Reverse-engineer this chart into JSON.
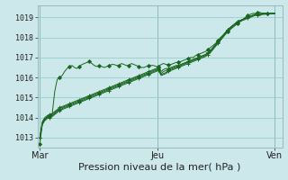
{
  "bg_color": "#cce8eb",
  "grid_color": "#99cccc",
  "line_color": "#1a6620",
  "marker_color": "#1a6620",
  "xlabel": "Pression niveau de la mer( hPa )",
  "xlabel_fontsize": 8,
  "yticks": [
    1013,
    1014,
    1015,
    1016,
    1017,
    1018,
    1019
  ],
  "ylim": [
    1012.5,
    1019.6
  ],
  "xtick_labels": [
    "Mar",
    "Jeu",
    "Ven"
  ],
  "xtick_positions": [
    0,
    48,
    96
  ],
  "xlim": [
    -1,
    99
  ],
  "vlines": [
    0,
    48,
    96
  ],
  "series": [
    [
      1012.7,
      1013.7,
      1013.9,
      1014.0,
      1014.1,
      1014.2,
      1015.3,
      1015.9,
      1016.0,
      1016.1,
      1016.3,
      1016.45,
      1016.55,
      1016.6,
      1016.5,
      1016.45,
      1016.55,
      1016.65,
      1016.7,
      1016.75,
      1016.8,
      1016.7,
      1016.6,
      1016.55,
      1016.6,
      1016.55,
      1016.5,
      1016.55,
      1016.6,
      1016.65,
      1016.65,
      1016.6,
      1016.6,
      1016.7,
      1016.65,
      1016.6,
      1016.6,
      1016.7,
      1016.65,
      1016.6,
      1016.55,
      1016.5,
      1016.5,
      1016.55,
      1016.6,
      1016.6,
      1016.6,
      1016.55,
      1016.55,
      1016.65,
      1016.7,
      1016.65,
      1016.65,
      1016.65,
      1016.7,
      1016.75,
      1016.75,
      1016.8,
      1016.85,
      1016.9,
      1016.95,
      1017.0,
      1017.0,
      1017.1,
      1017.15,
      1017.2,
      1017.25,
      1017.3,
      1017.4,
      1017.5,
      1017.6,
      1017.7,
      1017.85,
      1018.0,
      1018.1,
      1018.2,
      1018.3,
      1018.4,
      1018.5,
      1018.6,
      1018.7,
      1018.8,
      1018.9,
      1019.0,
      1019.1,
      1019.15,
      1019.2,
      1019.2,
      1019.25,
      1019.25,
      1019.2,
      1019.2,
      1019.2,
      1019.2,
      1019.2,
      1019.2
    ],
    [
      1013.0,
      1013.8,
      1014.0,
      1014.1,
      1014.15,
      1014.2,
      1014.3,
      1014.4,
      1014.5,
      1014.55,
      1014.6,
      1014.65,
      1014.7,
      1014.75,
      1014.8,
      1014.85,
      1014.9,
      1014.95,
      1015.0,
      1015.05,
      1015.1,
      1015.15,
      1015.2,
      1015.25,
      1015.3,
      1015.35,
      1015.4,
      1015.45,
      1015.5,
      1015.55,
      1015.6,
      1015.65,
      1015.7,
      1015.75,
      1015.8,
      1015.85,
      1015.9,
      1015.95,
      1016.0,
      1016.05,
      1016.1,
      1016.15,
      1016.2,
      1016.25,
      1016.3,
      1016.35,
      1016.4,
      1016.45,
      1016.5,
      1016.3,
      1016.4,
      1016.45,
      1016.45,
      1016.5,
      1016.55,
      1016.6,
      1016.6,
      1016.65,
      1016.7,
      1016.75,
      1016.8,
      1016.85,
      1016.9,
      1016.95,
      1017.0,
      1017.05,
      1017.1,
      1017.15,
      1017.25,
      1017.35,
      1017.5,
      1017.65,
      1017.8,
      1017.95,
      1018.1,
      1018.25,
      1018.4,
      1018.5,
      1018.6,
      1018.7,
      1018.8,
      1018.85,
      1018.9,
      1018.95,
      1019.0,
      1019.05,
      1019.1,
      1019.15,
      1019.15,
      1019.15,
      1019.2,
      1019.2,
      1019.2,
      1019.2,
      1019.2,
      1019.2
    ],
    [
      1013.0,
      1013.75,
      1013.95,
      1014.05,
      1014.1,
      1014.15,
      1014.25,
      1014.35,
      1014.45,
      1014.5,
      1014.55,
      1014.6,
      1014.65,
      1014.7,
      1014.75,
      1014.8,
      1014.85,
      1014.9,
      1014.95,
      1015.0,
      1015.05,
      1015.1,
      1015.15,
      1015.2,
      1015.25,
      1015.3,
      1015.35,
      1015.4,
      1015.45,
      1015.5,
      1015.55,
      1015.6,
      1015.65,
      1015.7,
      1015.75,
      1015.8,
      1015.85,
      1015.9,
      1015.95,
      1016.0,
      1016.05,
      1016.1,
      1016.15,
      1016.2,
      1016.25,
      1016.3,
      1016.35,
      1016.4,
      1016.45,
      1016.2,
      1016.3,
      1016.35,
      1016.4,
      1016.45,
      1016.5,
      1016.55,
      1016.6,
      1016.65,
      1016.7,
      1016.75,
      1016.8,
      1016.85,
      1016.9,
      1016.95,
      1017.0,
      1017.05,
      1017.1,
      1017.15,
      1017.25,
      1017.35,
      1017.5,
      1017.65,
      1017.8,
      1017.95,
      1018.1,
      1018.25,
      1018.4,
      1018.5,
      1018.6,
      1018.7,
      1018.8,
      1018.85,
      1018.9,
      1018.95,
      1019.0,
      1019.05,
      1019.1,
      1019.15,
      1019.15,
      1019.15,
      1019.2,
      1019.2,
      1019.2,
      1019.2,
      1019.2,
      1019.2
    ],
    [
      1013.0,
      1013.7,
      1013.9,
      1014.0,
      1014.05,
      1014.1,
      1014.2,
      1014.3,
      1014.4,
      1014.45,
      1014.5,
      1014.55,
      1014.6,
      1014.65,
      1014.7,
      1014.75,
      1014.8,
      1014.85,
      1014.9,
      1014.95,
      1015.0,
      1015.05,
      1015.1,
      1015.15,
      1015.2,
      1015.25,
      1015.3,
      1015.35,
      1015.4,
      1015.45,
      1015.5,
      1015.55,
      1015.6,
      1015.65,
      1015.7,
      1015.75,
      1015.8,
      1015.85,
      1015.9,
      1015.95,
      1016.0,
      1016.05,
      1016.1,
      1016.15,
      1016.2,
      1016.25,
      1016.3,
      1016.35,
      1016.4,
      1016.15,
      1016.2,
      1016.25,
      1016.35,
      1016.4,
      1016.45,
      1016.5,
      1016.55,
      1016.6,
      1016.65,
      1016.7,
      1016.75,
      1016.8,
      1016.85,
      1016.9,
      1016.95,
      1017.0,
      1017.05,
      1017.1,
      1017.2,
      1017.3,
      1017.45,
      1017.6,
      1017.75,
      1017.9,
      1018.05,
      1018.2,
      1018.35,
      1018.5,
      1018.6,
      1018.7,
      1018.8,
      1018.85,
      1018.9,
      1018.95,
      1019.0,
      1019.05,
      1019.1,
      1019.15,
      1019.15,
      1019.15,
      1019.2,
      1019.2,
      1019.2,
      1019.2,
      1019.2,
      1019.2
    ],
    [
      1013.0,
      1013.65,
      1013.85,
      1013.95,
      1014.0,
      1014.05,
      1014.15,
      1014.25,
      1014.35,
      1014.4,
      1014.45,
      1014.5,
      1014.55,
      1014.6,
      1014.65,
      1014.7,
      1014.75,
      1014.8,
      1014.85,
      1014.9,
      1014.95,
      1015.0,
      1015.05,
      1015.1,
      1015.15,
      1015.2,
      1015.25,
      1015.3,
      1015.35,
      1015.4,
      1015.45,
      1015.5,
      1015.55,
      1015.6,
      1015.65,
      1015.7,
      1015.75,
      1015.8,
      1015.85,
      1015.9,
      1015.95,
      1016.0,
      1016.05,
      1016.1,
      1016.15,
      1016.2,
      1016.25,
      1016.3,
      1016.35,
      1016.1,
      1016.15,
      1016.2,
      1016.3,
      1016.35,
      1016.4,
      1016.45,
      1016.5,
      1016.55,
      1016.6,
      1016.65,
      1016.7,
      1016.75,
      1016.8,
      1016.85,
      1016.9,
      1016.95,
      1017.0,
      1017.05,
      1017.15,
      1017.25,
      1017.4,
      1017.55,
      1017.7,
      1017.85,
      1018.0,
      1018.15,
      1018.3,
      1018.45,
      1018.55,
      1018.65,
      1018.75,
      1018.8,
      1018.85,
      1018.9,
      1018.95,
      1019.0,
      1019.05,
      1019.1,
      1019.1,
      1019.1,
      1019.15,
      1019.15,
      1019.2,
      1019.2,
      1019.2,
      1019.2
    ]
  ]
}
